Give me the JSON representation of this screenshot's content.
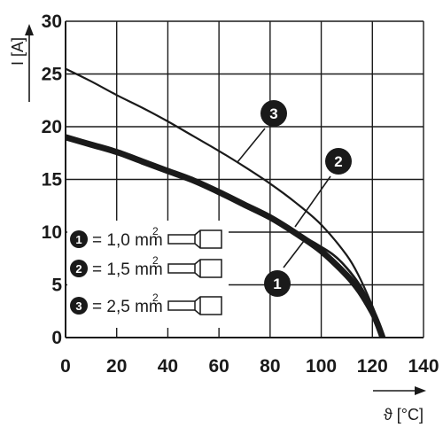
{
  "chart_data": {
    "type": "line",
    "xlabel": "ϑ [°C]",
    "ylabel": "I [A]",
    "xlim": [
      0,
      140
    ],
    "ylim": [
      0,
      30
    ],
    "xticks": [
      "0",
      "20",
      "40",
      "60",
      "80",
      "100",
      "120",
      "140"
    ],
    "yticks": [
      "0",
      "5",
      "10",
      "15",
      "20",
      "25",
      "30"
    ],
    "grid": true,
    "series": [
      {
        "marker": "1",
        "legend_label": "= 1,0 mm",
        "legend_sup": "2",
        "x": [
          0,
          10,
          20,
          30,
          40,
          50,
          60,
          70,
          80,
          90,
          100,
          110,
          115,
          120,
          122,
          124
        ],
        "y": [
          19,
          18.3,
          17.6,
          16.7,
          15.8,
          14.9,
          13.8,
          12.6,
          11.4,
          9.9,
          8.2,
          5.9,
          4.4,
          2.4,
          1.3,
          0
        ]
      },
      {
        "marker": "2",
        "legend_label": "= 1,5 mm",
        "legend_sup": "2",
        "x": [
          90,
          95,
          100,
          105,
          110,
          115,
          120,
          122,
          124
        ],
        "y": [
          9.9,
          9.3,
          8.6,
          7.8,
          6.6,
          5.0,
          2.8,
          1.6,
          0
        ]
      },
      {
        "marker": "3",
        "legend_label": "= 2,5 mm",
        "legend_sup": "2",
        "x": [
          0,
          10,
          20,
          30,
          40,
          50,
          60,
          70,
          80,
          90,
          100,
          110,
          115,
          120,
          122,
          124
        ],
        "y": [
          25.5,
          24.3,
          23.0,
          21.8,
          20.5,
          19.1,
          17.7,
          16.2,
          14.6,
          12.8,
          10.7,
          7.8,
          5.7,
          3.0,
          1.7,
          0
        ]
      }
    ]
  },
  "colors": {
    "line": "#1a1a1a",
    "grid": "#1a1a1a",
    "background": "#ffffff"
  },
  "icons": [
    "ferrule-icon"
  ]
}
